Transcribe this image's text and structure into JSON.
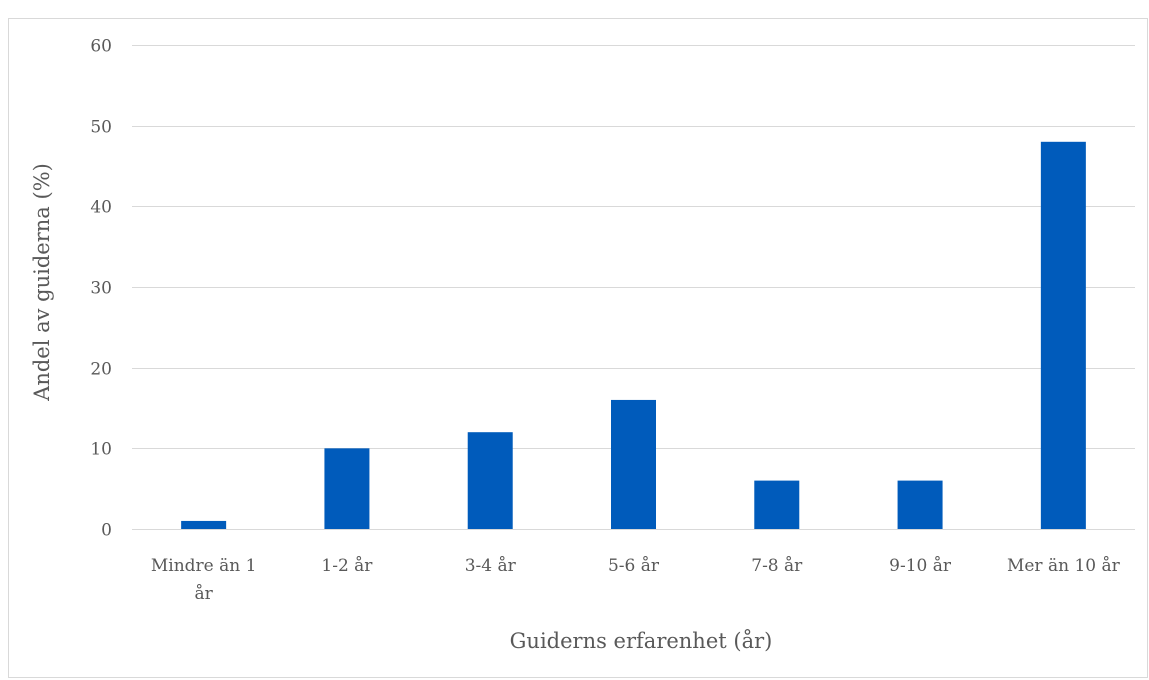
{
  "chart_data": {
    "type": "bar",
    "categories": [
      [
        "Mindre än 1",
        "år"
      ],
      [
        "1-2 år"
      ],
      [
        "3-4 år"
      ],
      [
        "5-6 år"
      ],
      [
        "7-8 år"
      ],
      [
        "9-10 år"
      ],
      [
        "Mer än 10 år"
      ]
    ],
    "values": [
      1,
      10,
      12,
      16,
      6,
      6,
      48
    ],
    "xlabel": "Guiderns erfarenhet (år)",
    "ylabel": "Andel av guiderna (%)",
    "ylim": [
      0,
      60
    ],
    "yticks": [
      0,
      10,
      20,
      30,
      40,
      50,
      60
    ],
    "grid": true,
    "legend": "none",
    "colors": {
      "bar": "#005bbb",
      "grid": "#d9d9d9",
      "text": "#595959"
    }
  }
}
